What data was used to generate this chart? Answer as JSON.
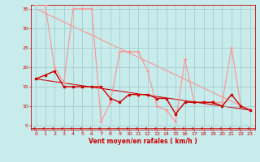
{
  "x": [
    0,
    1,
    2,
    3,
    4,
    5,
    6,
    7,
    8,
    9,
    10,
    11,
    12,
    13,
    14,
    15,
    16,
    17,
    18,
    19,
    20,
    21,
    22,
    23
  ],
  "wind_mean": [
    17,
    18,
    19,
    15,
    15,
    15,
    15,
    15,
    12,
    11,
    13,
    13,
    13,
    12,
    12,
    8,
    11,
    11,
    11,
    11,
    10,
    13,
    10,
    9
  ],
  "wind_gust": [
    36,
    36,
    20,
    16,
    35,
    35,
    35,
    6,
    11,
    24,
    24,
    24,
    19,
    10,
    9,
    6,
    22,
    11,
    11,
    11,
    11,
    25,
    10,
    9
  ],
  "trend_gust": [
    35,
    9
  ],
  "trend_mean": [
    17,
    9
  ],
  "xlabel": "Vent moyen/en rafales ( km/h )",
  "xlim": [
    -0.5,
    23.5
  ],
  "ylim": [
    4,
    36
  ],
  "yticks": [
    5,
    10,
    15,
    20,
    25,
    30,
    35
  ],
  "xticks": [
    0,
    1,
    2,
    3,
    4,
    5,
    6,
    7,
    8,
    9,
    10,
    11,
    12,
    13,
    14,
    15,
    16,
    17,
    18,
    19,
    20,
    21,
    22,
    23
  ],
  "bg_color": "#c8ecec",
  "grid_color": "#a0c8c8",
  "mean_color": "#cc0000",
  "gust_color": "#ff9090",
  "arrow_color": "#cc0000",
  "tick_color": "#cc0000",
  "label_color": "#cc0000"
}
